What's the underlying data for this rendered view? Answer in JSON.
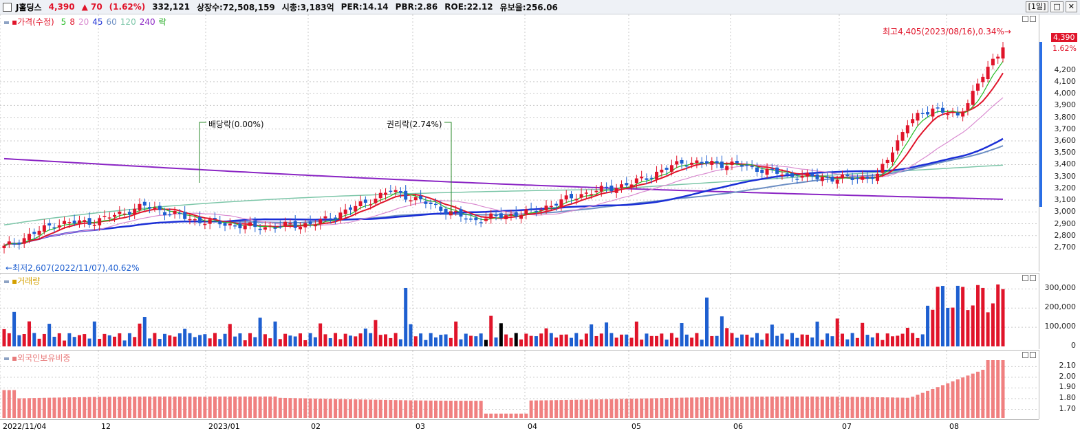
{
  "header": {
    "name": "J홀딩스",
    "price": "4,390",
    "change": "▲ 70",
    "change_pct": "(1.62%)",
    "volume": "332,121",
    "shares": "상장수:72,508,159",
    "mcap": "시총:3,183억",
    "per": "PER:14.14",
    "pbr": "PBR:2.86",
    "roe": "ROE:22.12",
    "reserve": "유보율:256.06",
    "period": "[1일]",
    "btn_restore": "□",
    "btn_close": "✕"
  },
  "price_panel": {
    "legend_label": "가격(수정)",
    "ma_labels": [
      "5",
      "8",
      "20",
      "45",
      "60",
      "120",
      "240"
    ],
    "ex_label": "락",
    "high_annotation": "최고4,405(2023/08/16),0.34%→",
    "low_annotation": "←최저2,607(2022/11/07),40.62%",
    "dividend_annotation": "배당락(0.00%)",
    "rights_annotation": "권리락(2.74%)",
    "current_price_box": "4,390",
    "current_pct": "1.62%",
    "y_ticks": [
      "4,200",
      "4,100",
      "4,000",
      "3,900",
      "3,800",
      "3,700",
      "3,600",
      "3,500",
      "3,400",
      "3,300",
      "3,200",
      "3,100",
      "3,000",
      "2,900",
      "2,800",
      "2,700"
    ]
  },
  "volume_panel": {
    "legend_label": "거래량",
    "y_ticks": [
      "300,000",
      "200,000",
      "100,000",
      "0"
    ]
  },
  "foreign_panel": {
    "legend_label": "외국인보유비중",
    "y_ticks": [
      "2.10",
      "2.00",
      "1.90",
      "1.80",
      "1.70"
    ]
  },
  "x_axis": {
    "labels": [
      "2022/11/04",
      "12",
      "2023/01",
      "02",
      "03",
      "04",
      "05",
      "06",
      "07",
      "08"
    ]
  },
  "colors": {
    "up": "#e0142a",
    "down": "#1e5fd0",
    "ma5": "#22bb22",
    "ma8": "#e0142a",
    "ma20": "#d98ad0",
    "ma45": "#1b2fd6",
    "ma60": "#6d8fc4",
    "ma120": "#7cc6a8",
    "ma240": "#8a24c4"
  },
  "chart_data": {
    "type": "candlestick+line+bar",
    "price_anchor_points": [
      [
        "2022/11/04",
        2700
      ],
      [
        "2022/11/18",
        2900
      ],
      [
        "2022/12/01",
        2920
      ],
      [
        "2022/12/15",
        3050
      ],
      [
        "2022/12/29",
        2930
      ],
      [
        "2023/01/16",
        2870
      ],
      [
        "2023/02/01",
        2900
      ],
      [
        "2023/02/15",
        3080
      ],
      [
        "2023/02/22",
        3180
      ],
      [
        "2023/03/06",
        3060
      ],
      [
        "2023/03/17",
        2930
      ],
      [
        "2023/04/03",
        3000
      ],
      [
        "2023/04/17",
        3150
      ],
      [
        "2023/05/01",
        3240
      ],
      [
        "2023/05/15",
        3420
      ],
      [
        "2023/05/31",
        3400
      ],
      [
        "2023/06/14",
        3310
      ],
      [
        "2023/06/28",
        3280
      ],
      [
        "2023/07/10",
        3300
      ],
      [
        "2023/07/19",
        3750
      ],
      [
        "2023/07/27",
        3880
      ],
      [
        "2023/08/03",
        3800
      ],
      [
        "2023/08/10",
        4150
      ],
      [
        "2023/08/16",
        4390
      ]
    ],
    "ma240_range": [
      3450,
      3100
    ],
    "volume_peak": 330000,
    "foreign_ratio_range": [
      1.62,
      2.16
    ]
  }
}
